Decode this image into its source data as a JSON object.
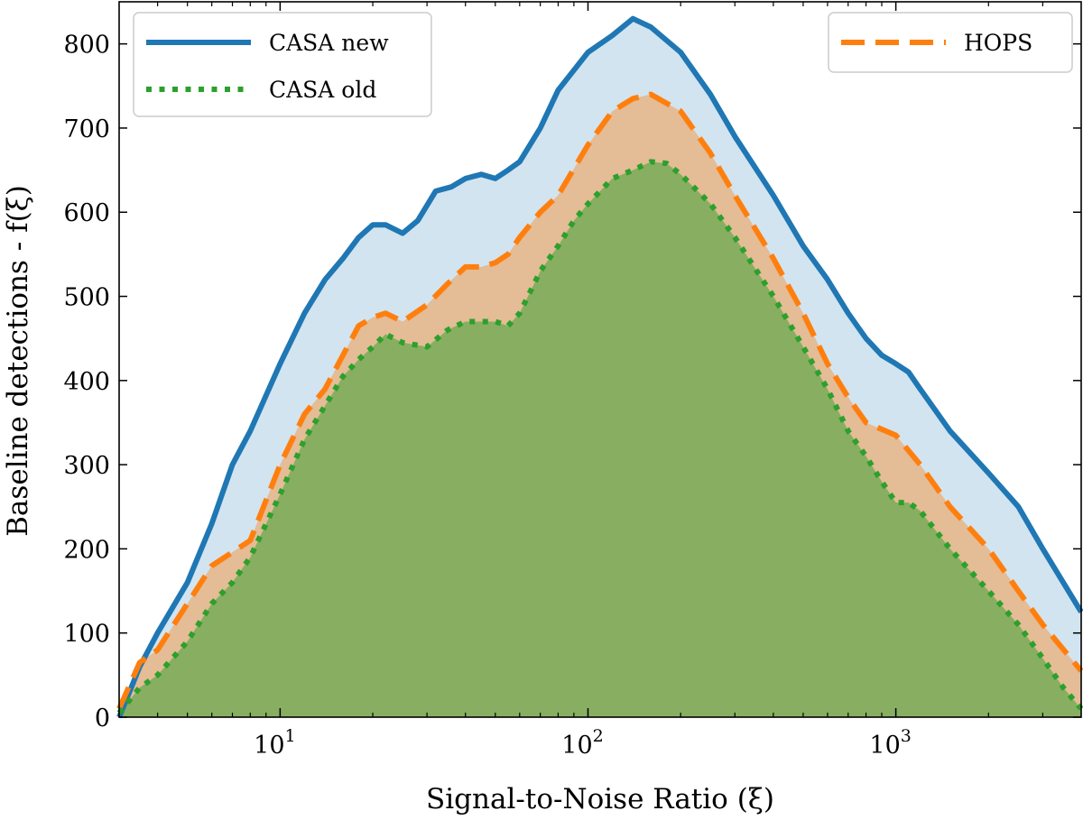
{
  "chart_data": {
    "type": "area",
    "title": "",
    "xlabel": "Signal-to-Noise Ratio (ξ)",
    "ylabel": "Baseline detections - f(ξ)",
    "xscale": "log",
    "xlim": [
      3,
      4000
    ],
    "ylim": [
      0,
      850
    ],
    "grid": false,
    "x_ticks": [
      {
        "value": 10,
        "base": "10",
        "exp": "1"
      },
      {
        "value": 100,
        "base": "10",
        "exp": "2"
      },
      {
        "value": 1000,
        "base": "10",
        "exp": "3"
      }
    ],
    "y_ticks": [
      {
        "value": 0,
        "label": "0"
      },
      {
        "value": 100,
        "label": "100"
      },
      {
        "value": 200,
        "label": "200"
      },
      {
        "value": 300,
        "label": "300"
      },
      {
        "value": 400,
        "label": "400"
      },
      {
        "value": 500,
        "label": "500"
      },
      {
        "value": 600,
        "label": "600"
      },
      {
        "value": 700,
        "label": "700"
      },
      {
        "value": 800,
        "label": "800"
      }
    ],
    "series": [
      {
        "name": "CASA new",
        "color": "#1f77b4",
        "fill": "#1f77b4",
        "fill_alpha": 0.2,
        "line_style": "solid",
        "x": [
          3.0,
          3.2,
          3.5,
          4.0,
          5.0,
          6.0,
          7.0,
          8.0,
          10.0,
          12.0,
          14.0,
          16.0,
          18.0,
          20.0,
          22.0,
          25.0,
          28.0,
          32.0,
          36.0,
          40.0,
          45.0,
          50.0,
          55.0,
          60.0,
          70.0,
          80.0,
          100.0,
          120.0,
          140.0,
          160.0,
          200.0,
          250.0,
          300.0,
          400.0,
          500.0,
          600.0,
          700.0,
          800.0,
          900.0,
          1000.0,
          1100.0,
          1200.0,
          1500.0,
          2000.0,
          2500.0,
          3000.0,
          4000.0
        ],
        "y": [
          0,
          25,
          60,
          100,
          160,
          230,
          300,
          340,
          420,
          480,
          520,
          545,
          570,
          585,
          585,
          575,
          590,
          625,
          630,
          640,
          645,
          640,
          650,
          660,
          700,
          745,
          790,
          810,
          830,
          820,
          790,
          740,
          690,
          620,
          560,
          520,
          480,
          450,
          430,
          420,
          410,
          390,
          340,
          290,
          250,
          200,
          125
        ]
      },
      {
        "name": "HOPS",
        "color": "#ff7f0e",
        "fill": "#ff7f0e",
        "fill_alpha": 0.4,
        "line_style": "dashed",
        "x": [
          3.0,
          3.5,
          4.0,
          5.0,
          6.0,
          8.0,
          10.0,
          12.0,
          14.0,
          16.0,
          18.0,
          20.0,
          22.0,
          25.0,
          30.0,
          35.0,
          40.0,
          45.0,
          50.0,
          55.0,
          60.0,
          70.0,
          80.0,
          100.0,
          120.0,
          140.0,
          160.0,
          200.0,
          250.0,
          300.0,
          400.0,
          500.0,
          600.0,
          700.0,
          800.0,
          1000.0,
          1200.0,
          1500.0,
          2000.0,
          2500.0,
          3000.0,
          4000.0
        ],
        "y": [
          10,
          65,
          80,
          135,
          180,
          210,
          300,
          360,
          390,
          430,
          465,
          475,
          480,
          470,
          490,
          515,
          535,
          535,
          540,
          550,
          570,
          600,
          620,
          680,
          720,
          735,
          740,
          720,
          670,
          620,
          545,
          480,
          420,
          380,
          350,
          335,
          300,
          250,
          200,
          150,
          110,
          55
        ]
      },
      {
        "name": "CASA old",
        "color": "#2ca02c",
        "fill": "#2ca02c",
        "fill_alpha": 0.5,
        "line_style": "dotted",
        "x": [
          3.0,
          3.5,
          4.0,
          5.0,
          6.0,
          7.0,
          8.0,
          10.0,
          12.0,
          14.0,
          16.0,
          18.0,
          20.0,
          22.0,
          25.0,
          30.0,
          35.0,
          40.0,
          45.0,
          50.0,
          55.0,
          60.0,
          70.0,
          80.0,
          90.0,
          100.0,
          120.0,
          140.0,
          160.0,
          180.0,
          200.0,
          250.0,
          300.0,
          400.0,
          500.0,
          600.0,
          700.0,
          800.0,
          900.0,
          1000.0,
          1100.0,
          1200.0,
          1500.0,
          2000.0,
          2500.0,
          3000.0,
          3500.0,
          4000.0
        ],
        "y": [
          5,
          35,
          50,
          90,
          135,
          160,
          190,
          265,
          330,
          370,
          405,
          425,
          440,
          455,
          445,
          440,
          460,
          470,
          470,
          470,
          465,
          480,
          530,
          560,
          590,
          610,
          640,
          650,
          660,
          658,
          645,
          610,
          570,
          500,
          440,
          390,
          340,
          310,
          280,
          255,
          255,
          245,
          200,
          150,
          110,
          70,
          35,
          10
        ]
      }
    ],
    "legends": [
      {
        "position": "upper-left",
        "entries": [
          "CASA new",
          "CASA old"
        ]
      },
      {
        "position": "upper-right",
        "entries": [
          "HOPS"
        ]
      }
    ]
  }
}
